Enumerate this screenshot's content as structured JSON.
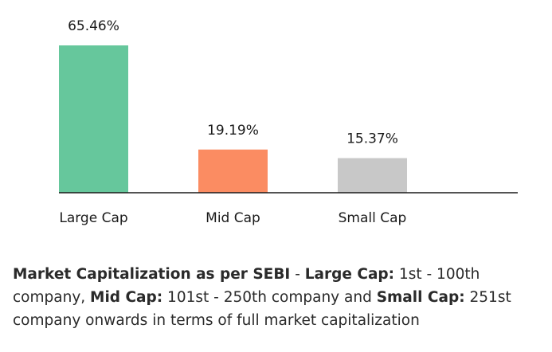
{
  "chart_data": {
    "type": "bar",
    "categories": [
      "Large Cap",
      "Mid Cap",
      "Small Cap"
    ],
    "values": [
      65.46,
      19.19,
      15.37
    ],
    "value_labels": [
      "65.46%",
      "19.19%",
      "15.37%"
    ],
    "colors": [
      "#66c79c",
      "#fb8c62",
      "#c8c8c8"
    ],
    "title": "",
    "xlabel": "",
    "ylabel": "",
    "ylim": [
      0,
      65.46
    ],
    "grid": false
  },
  "caption": {
    "term1": "Market Capitalization as per SEBI",
    "sep1": " - ",
    "term2": "Large Cap:",
    "text2": " 1st - 100th company, ",
    "term3": "Mid Cap:",
    "text3": " 101st - 250th company and ",
    "term4": "Small Cap:",
    "text4": " 251st company onwards in terms of full market capitalization"
  }
}
